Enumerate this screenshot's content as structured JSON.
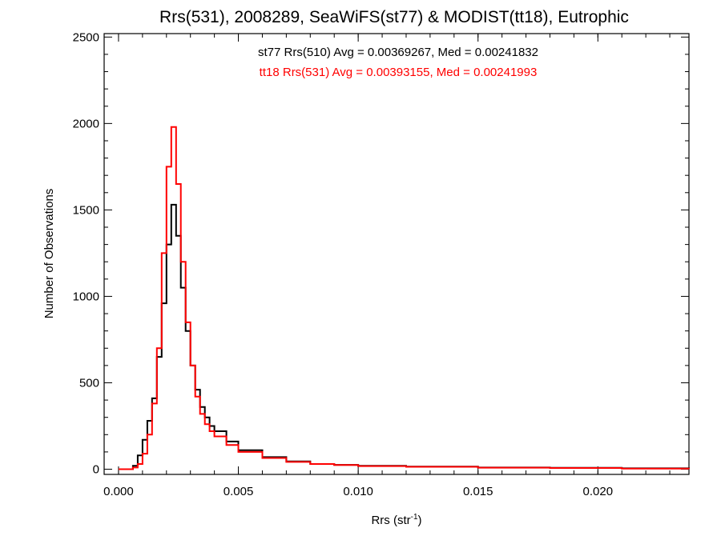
{
  "chart_data": {
    "type": "line",
    "title": "Rrs(531), 2008289, SeaWiFS(st77) & MODIST(tt18), Eutrophic",
    "xlabel_main": "Rrs (str",
    "xlabel_sup": "-1",
    "xlabel_close": ")",
    "ylabel": "Number of Observations",
    "xlim": [
      -0.0006,
      0.0238
    ],
    "ylim": [
      -30,
      2520
    ],
    "x_ticks": [
      0.0,
      0.005,
      0.01,
      0.015,
      0.02
    ],
    "x_tick_labels": [
      "0.000",
      "0.005",
      "0.010",
      "0.015",
      "0.020"
    ],
    "y_ticks": [
      0,
      500,
      1000,
      1500,
      2000,
      2500
    ],
    "y_tick_labels": [
      "0",
      "500",
      "1000",
      "1500",
      "2000",
      "2500"
    ],
    "grid": false,
    "series": [
      {
        "name": "st77 Rrs(510)",
        "color": "#000000",
        "x": [
          0.0,
          0.0006,
          0.0008,
          0.001,
          0.0012,
          0.0014,
          0.0016,
          0.0018,
          0.002,
          0.0022,
          0.0024,
          0.0026,
          0.0028,
          0.003,
          0.0032,
          0.0034,
          0.0036,
          0.0038,
          0.004,
          0.0045,
          0.005,
          0.006,
          0.007,
          0.008,
          0.009,
          0.01,
          0.012,
          0.015,
          0.018,
          0.021,
          0.0238
        ],
        "y": [
          0,
          20,
          80,
          170,
          280,
          410,
          650,
          960,
          1300,
          1530,
          1350,
          1050,
          800,
          600,
          460,
          360,
          300,
          250,
          220,
          160,
          110,
          70,
          45,
          30,
          25,
          20,
          15,
          10,
          8,
          5,
          3
        ]
      },
      {
        "name": "tt18 Rrs(531)",
        "color": "#ff0000",
        "x": [
          0.0,
          0.0006,
          0.0008,
          0.001,
          0.0012,
          0.0014,
          0.0016,
          0.0018,
          0.002,
          0.0022,
          0.0024,
          0.0026,
          0.0028,
          0.003,
          0.0032,
          0.0034,
          0.0036,
          0.0038,
          0.004,
          0.0045,
          0.005,
          0.006,
          0.007,
          0.008,
          0.009,
          0.01,
          0.012,
          0.015,
          0.018,
          0.021,
          0.0238
        ],
        "y": [
          0,
          10,
          30,
          90,
          200,
          380,
          700,
          1250,
          1750,
          1980,
          1650,
          1200,
          850,
          600,
          420,
          320,
          260,
          220,
          190,
          140,
          100,
          65,
          42,
          30,
          24,
          18,
          14,
          9,
          7,
          4,
          2
        ]
      }
    ],
    "annotations": [
      {
        "text": "st77 Rrs(510) Avg = 0.00369267, Med = 0.00241832",
        "color": "#000000"
      },
      {
        "text": "tt18 Rrs(531) Avg = 0.00393155, Med = 0.00241993",
        "color": "#ff0000"
      }
    ]
  }
}
